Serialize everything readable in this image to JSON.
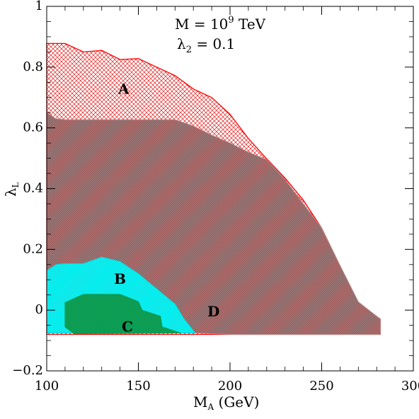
{
  "chart_data": {
    "type": "area",
    "title_lines": [
      {
        "base": "M = 10",
        "sup": "9",
        "rest": " TeV"
      },
      {
        "base": "λ",
        "sub": "2",
        "rest": " = 0.1"
      }
    ],
    "xlabel": {
      "base": "M",
      "sub": "A",
      "rest": " (GeV)"
    },
    "ylabel": {
      "base": "λ",
      "sub": "L"
    },
    "xlim": [
      100,
      300
    ],
    "ylim": [
      -0.2,
      1.0
    ],
    "xticks": [
      "100",
      "150",
      "200",
      "250",
      "300"
    ],
    "yticks": [
      "−0.2",
      "0",
      "0.2",
      "0.4",
      "0.6",
      "0.8",
      "1"
    ],
    "regions": [
      {
        "name": "A",
        "fill": "#ffffff",
        "hatch": "cross",
        "hatch_color": "#e0201f",
        "edge": "#ff0000",
        "label_at": [
          142,
          0.725
        ],
        "points": [
          [
            100,
            0.878
          ],
          [
            110,
            0.878
          ],
          [
            120,
            0.85
          ],
          [
            130,
            0.855
          ],
          [
            140,
            0.825
          ],
          [
            150,
            0.828
          ],
          [
            160,
            0.8
          ],
          [
            170,
            0.772
          ],
          [
            180,
            0.728
          ],
          [
            190,
            0.7
          ],
          [
            200,
            0.645
          ],
          [
            210,
            0.565
          ],
          [
            220,
            0.498
          ],
          [
            230,
            0.435
          ],
          [
            240,
            0.362
          ],
          [
            250,
            0.27
          ],
          [
            260,
            0.145
          ],
          [
            270,
            0.025
          ],
          [
            282,
            -0.03
          ],
          [
            282,
            -0.08
          ],
          [
            180,
            -0.08
          ],
          [
            100,
            -0.08
          ]
        ]
      },
      {
        "name": "D",
        "fill": "#8e7a7a",
        "hatch": "diag",
        "hatch_color": "#c83b3b",
        "edge": "#b88a8a",
        "label_at": [
          191,
          -0.008
        ],
        "points": [
          [
            100,
            0.65
          ],
          [
            105,
            0.63
          ],
          [
            110,
            0.627
          ],
          [
            170,
            0.627
          ],
          [
            180,
            0.606
          ],
          [
            190,
            0.576
          ],
          [
            200,
            0.55
          ],
          [
            210,
            0.52
          ],
          [
            220,
            0.495
          ],
          [
            230,
            0.43
          ],
          [
            240,
            0.35
          ],
          [
            250,
            0.27
          ],
          [
            260,
            0.147
          ],
          [
            270,
            0.027
          ],
          [
            282,
            -0.03
          ],
          [
            282,
            -0.08
          ],
          [
            270,
            -0.08
          ],
          [
            230,
            -0.08
          ],
          [
            200,
            -0.08
          ],
          [
            180,
            -0.075
          ],
          [
            100,
            -0.075
          ]
        ]
      },
      {
        "name": "B",
        "fill": "#06f0f0",
        "hatch": "diag",
        "hatch_color": "#22e0e6",
        "edge": "#00d8d8",
        "label_at": [
          140,
          0.1
        ],
        "points": [
          [
            100,
            0.13
          ],
          [
            105,
            0.15
          ],
          [
            110,
            0.153
          ],
          [
            120,
            0.153
          ],
          [
            130,
            0.175
          ],
          [
            140,
            0.16
          ],
          [
            150,
            0.12
          ],
          [
            160,
            0.07
          ],
          [
            170,
            0.02
          ],
          [
            175,
            -0.03
          ],
          [
            181,
            -0.075
          ],
          [
            100,
            -0.075
          ]
        ]
      },
      {
        "name": "C",
        "fill": "#0a9a50",
        "hatch": "diag",
        "hatch_color": "#1aa860",
        "edge": "#0a9a50",
        "label_at": [
          144,
          -0.058
        ],
        "points": [
          [
            110,
            0.025
          ],
          [
            120,
            0.052
          ],
          [
            140,
            0.052
          ],
          [
            150,
            0.028
          ],
          [
            152,
            0.0
          ],
          [
            162,
            -0.02
          ],
          [
            163,
            -0.055
          ],
          [
            173,
            -0.075
          ],
          [
            115,
            -0.078
          ],
          [
            110,
            -0.055
          ]
        ]
      }
    ]
  }
}
